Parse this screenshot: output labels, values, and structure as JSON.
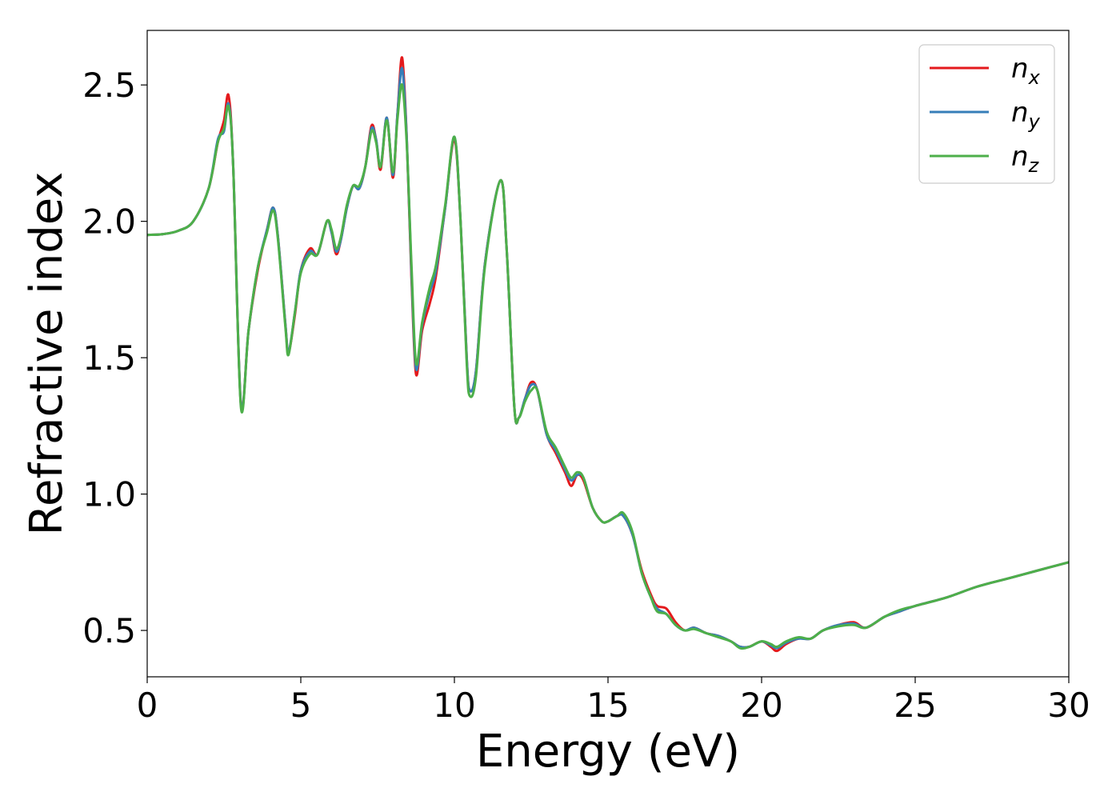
{
  "chart_data": {
    "type": "line",
    "title": "",
    "xlabel": "Energy (eV)",
    "ylabel": "Refractive index",
    "xlim": [
      0,
      30
    ],
    "ylim": [
      0.33,
      2.7
    ],
    "xticks": [
      0,
      5,
      10,
      15,
      20,
      25,
      30
    ],
    "yticks": [
      0.5,
      1.0,
      1.5,
      2.0,
      2.5
    ],
    "xtick_labels": [
      "0",
      "5",
      "10",
      "15",
      "20",
      "25",
      "30"
    ],
    "ytick_labels": [
      "0.5",
      "1.0",
      "1.5",
      "2.0",
      "2.5"
    ],
    "grid": false,
    "legend_position": "top-right",
    "series": [
      {
        "name": "n_x",
        "label_base": "n",
        "label_sub": "x",
        "color": "#e41a1c",
        "points": [
          [
            0,
            1.95
          ],
          [
            0.5,
            1.953
          ],
          [
            1.0,
            1.965
          ],
          [
            1.5,
            2.0
          ],
          [
            2.0,
            2.12
          ],
          [
            2.3,
            2.29
          ],
          [
            2.5,
            2.37
          ],
          [
            2.65,
            2.46
          ],
          [
            2.8,
            2.2
          ],
          [
            3.05,
            1.33
          ],
          [
            3.3,
            1.6
          ],
          [
            3.6,
            1.82
          ],
          [
            3.9,
            1.97
          ],
          [
            4.1,
            2.05
          ],
          [
            4.25,
            1.95
          ],
          [
            4.5,
            1.62
          ],
          [
            4.6,
            1.52
          ],
          [
            4.8,
            1.65
          ],
          [
            5.0,
            1.82
          ],
          [
            5.3,
            1.9
          ],
          [
            5.55,
            1.88
          ],
          [
            5.85,
            2.0
          ],
          [
            6.0,
            1.96
          ],
          [
            6.15,
            1.88
          ],
          [
            6.3,
            1.93
          ],
          [
            6.5,
            2.05
          ],
          [
            6.7,
            2.13
          ],
          [
            6.9,
            2.12
          ],
          [
            7.1,
            2.2
          ],
          [
            7.3,
            2.35
          ],
          [
            7.45,
            2.3
          ],
          [
            7.6,
            2.19
          ],
          [
            7.8,
            2.38
          ],
          [
            8.0,
            2.16
          ],
          [
            8.15,
            2.4
          ],
          [
            8.3,
            2.6
          ],
          [
            8.45,
            2.3
          ],
          [
            8.6,
            1.8
          ],
          [
            8.75,
            1.44
          ],
          [
            8.95,
            1.6
          ],
          [
            9.2,
            1.7
          ],
          [
            9.4,
            1.8
          ],
          [
            9.7,
            2.05
          ],
          [
            10.0,
            2.3
          ],
          [
            10.2,
            2.0
          ],
          [
            10.4,
            1.5
          ],
          [
            10.5,
            1.38
          ],
          [
            10.7,
            1.45
          ],
          [
            11.0,
            1.85
          ],
          [
            11.5,
            2.15
          ],
          [
            11.7,
            1.9
          ],
          [
            11.95,
            1.32
          ],
          [
            12.1,
            1.28
          ],
          [
            12.3,
            1.35
          ],
          [
            12.5,
            1.41
          ],
          [
            12.7,
            1.38
          ],
          [
            13.0,
            1.22
          ],
          [
            13.3,
            1.15
          ],
          [
            13.6,
            1.08
          ],
          [
            13.8,
            1.03
          ],
          [
            14.0,
            1.07
          ],
          [
            14.2,
            1.05
          ],
          [
            14.5,
            0.95
          ],
          [
            14.8,
            0.9
          ],
          [
            15.0,
            0.9
          ],
          [
            15.3,
            0.92
          ],
          [
            15.5,
            0.92
          ],
          [
            15.8,
            0.85
          ],
          [
            16.1,
            0.72
          ],
          [
            16.4,
            0.63
          ],
          [
            16.6,
            0.59
          ],
          [
            16.9,
            0.58
          ],
          [
            17.2,
            0.53
          ],
          [
            17.5,
            0.5
          ],
          [
            17.8,
            0.51
          ],
          [
            18.2,
            0.49
          ],
          [
            18.6,
            0.48
          ],
          [
            19.0,
            0.46
          ],
          [
            19.3,
            0.44
          ],
          [
            19.6,
            0.44
          ],
          [
            20.0,
            0.46
          ],
          [
            20.3,
            0.44
          ],
          [
            20.5,
            0.425
          ],
          [
            20.8,
            0.45
          ],
          [
            21.2,
            0.47
          ],
          [
            21.6,
            0.47
          ],
          [
            22.0,
            0.5
          ],
          [
            22.5,
            0.52
          ],
          [
            23.0,
            0.53
          ],
          [
            23.4,
            0.51
          ],
          [
            24.0,
            0.55
          ],
          [
            24.5,
            0.57
          ],
          [
            25.0,
            0.59
          ],
          [
            26.0,
            0.62
          ],
          [
            27.0,
            0.66
          ],
          [
            28.0,
            0.69
          ],
          [
            29.0,
            0.72
          ],
          [
            30.0,
            0.75
          ]
        ]
      },
      {
        "name": "n_y",
        "label_base": "n",
        "label_sub": "y",
        "color": "#377eb8",
        "points": [
          [
            0,
            1.95
          ],
          [
            0.5,
            1.953
          ],
          [
            1.0,
            1.965
          ],
          [
            1.5,
            2.0
          ],
          [
            2.0,
            2.12
          ],
          [
            2.3,
            2.3
          ],
          [
            2.5,
            2.33
          ],
          [
            2.65,
            2.43
          ],
          [
            2.8,
            2.2
          ],
          [
            3.05,
            1.33
          ],
          [
            3.3,
            1.6
          ],
          [
            3.6,
            1.83
          ],
          [
            3.9,
            1.97
          ],
          [
            4.1,
            2.05
          ],
          [
            4.25,
            1.95
          ],
          [
            4.5,
            1.62
          ],
          [
            4.6,
            1.52
          ],
          [
            4.8,
            1.66
          ],
          [
            5.0,
            1.82
          ],
          [
            5.3,
            1.89
          ],
          [
            5.55,
            1.88
          ],
          [
            5.85,
            2.0
          ],
          [
            6.0,
            1.96
          ],
          [
            6.15,
            1.89
          ],
          [
            6.3,
            1.93
          ],
          [
            6.5,
            2.05
          ],
          [
            6.7,
            2.13
          ],
          [
            6.9,
            2.12
          ],
          [
            7.1,
            2.2
          ],
          [
            7.3,
            2.34
          ],
          [
            7.45,
            2.3
          ],
          [
            7.6,
            2.2
          ],
          [
            7.8,
            2.38
          ],
          [
            8.0,
            2.17
          ],
          [
            8.15,
            2.4
          ],
          [
            8.3,
            2.56
          ],
          [
            8.45,
            2.3
          ],
          [
            8.6,
            1.82
          ],
          [
            8.75,
            1.46
          ],
          [
            8.95,
            1.62
          ],
          [
            9.2,
            1.74
          ],
          [
            9.4,
            1.82
          ],
          [
            9.7,
            2.05
          ],
          [
            10.0,
            2.31
          ],
          [
            10.2,
            2.0
          ],
          [
            10.4,
            1.5
          ],
          [
            10.5,
            1.38
          ],
          [
            10.7,
            1.45
          ],
          [
            11.0,
            1.85
          ],
          [
            11.5,
            2.15
          ],
          [
            11.7,
            1.9
          ],
          [
            11.95,
            1.32
          ],
          [
            12.1,
            1.28
          ],
          [
            12.3,
            1.35
          ],
          [
            12.5,
            1.4
          ],
          [
            12.7,
            1.38
          ],
          [
            13.0,
            1.22
          ],
          [
            13.3,
            1.16
          ],
          [
            13.6,
            1.09
          ],
          [
            13.8,
            1.05
          ],
          [
            14.0,
            1.07
          ],
          [
            14.2,
            1.06
          ],
          [
            14.5,
            0.95
          ],
          [
            14.8,
            0.9
          ],
          [
            15.0,
            0.9
          ],
          [
            15.3,
            0.92
          ],
          [
            15.5,
            0.92
          ],
          [
            15.8,
            0.85
          ],
          [
            16.1,
            0.71
          ],
          [
            16.4,
            0.62
          ],
          [
            16.6,
            0.58
          ],
          [
            16.9,
            0.56
          ],
          [
            17.2,
            0.52
          ],
          [
            17.5,
            0.5
          ],
          [
            17.8,
            0.51
          ],
          [
            18.2,
            0.49
          ],
          [
            18.6,
            0.48
          ],
          [
            19.0,
            0.46
          ],
          [
            19.3,
            0.44
          ],
          [
            19.6,
            0.44
          ],
          [
            20.0,
            0.46
          ],
          [
            20.3,
            0.445
          ],
          [
            20.5,
            0.435
          ],
          [
            20.8,
            0.455
          ],
          [
            21.2,
            0.47
          ],
          [
            21.6,
            0.47
          ],
          [
            22.0,
            0.5
          ],
          [
            22.5,
            0.52
          ],
          [
            23.0,
            0.525
          ],
          [
            23.4,
            0.51
          ],
          [
            24.0,
            0.55
          ],
          [
            24.5,
            0.57
          ],
          [
            25.0,
            0.59
          ],
          [
            26.0,
            0.62
          ],
          [
            27.0,
            0.66
          ],
          [
            28.0,
            0.69
          ],
          [
            29.0,
            0.72
          ],
          [
            30.0,
            0.75
          ]
        ]
      },
      {
        "name": "n_z",
        "label_base": "n",
        "label_sub": "z",
        "color": "#4daf4a",
        "points": [
          [
            0,
            1.95
          ],
          [
            0.5,
            1.953
          ],
          [
            1.0,
            1.965
          ],
          [
            1.5,
            2.0
          ],
          [
            2.0,
            2.12
          ],
          [
            2.3,
            2.29
          ],
          [
            2.5,
            2.34
          ],
          [
            2.65,
            2.42
          ],
          [
            2.8,
            2.2
          ],
          [
            3.05,
            1.32
          ],
          [
            3.3,
            1.6
          ],
          [
            3.6,
            1.83
          ],
          [
            3.9,
            1.96
          ],
          [
            4.1,
            2.04
          ],
          [
            4.25,
            1.94
          ],
          [
            4.5,
            1.61
          ],
          [
            4.6,
            1.51
          ],
          [
            4.8,
            1.66
          ],
          [
            5.0,
            1.81
          ],
          [
            5.3,
            1.88
          ],
          [
            5.55,
            1.88
          ],
          [
            5.85,
            2.0
          ],
          [
            6.0,
            1.97
          ],
          [
            6.15,
            1.9
          ],
          [
            6.3,
            1.94
          ],
          [
            6.5,
            2.06
          ],
          [
            6.7,
            2.13
          ],
          [
            6.9,
            2.13
          ],
          [
            7.1,
            2.2
          ],
          [
            7.3,
            2.33
          ],
          [
            7.45,
            2.29
          ],
          [
            7.6,
            2.2
          ],
          [
            7.8,
            2.37
          ],
          [
            8.0,
            2.18
          ],
          [
            8.15,
            2.38
          ],
          [
            8.3,
            2.5
          ],
          [
            8.45,
            2.28
          ],
          [
            8.6,
            1.85
          ],
          [
            8.75,
            1.48
          ],
          [
            8.95,
            1.63
          ],
          [
            9.2,
            1.76
          ],
          [
            9.4,
            1.84
          ],
          [
            9.7,
            2.06
          ],
          [
            10.0,
            2.31
          ],
          [
            10.2,
            2.0
          ],
          [
            10.4,
            1.48
          ],
          [
            10.5,
            1.36
          ],
          [
            10.7,
            1.43
          ],
          [
            11.0,
            1.84
          ],
          [
            11.5,
            2.15
          ],
          [
            11.7,
            1.9
          ],
          [
            11.95,
            1.32
          ],
          [
            12.1,
            1.28
          ],
          [
            12.3,
            1.34
          ],
          [
            12.5,
            1.38
          ],
          [
            12.7,
            1.38
          ],
          [
            13.0,
            1.23
          ],
          [
            13.3,
            1.17
          ],
          [
            13.6,
            1.1
          ],
          [
            13.8,
            1.06
          ],
          [
            14.0,
            1.08
          ],
          [
            14.2,
            1.06
          ],
          [
            14.5,
            0.95
          ],
          [
            14.8,
            0.9
          ],
          [
            15.0,
            0.9
          ],
          [
            15.3,
            0.92
          ],
          [
            15.5,
            0.93
          ],
          [
            15.8,
            0.86
          ],
          [
            16.1,
            0.71
          ],
          [
            16.4,
            0.62
          ],
          [
            16.6,
            0.57
          ],
          [
            16.9,
            0.56
          ],
          [
            17.2,
            0.52
          ],
          [
            17.5,
            0.5
          ],
          [
            17.8,
            0.505
          ],
          [
            18.2,
            0.49
          ],
          [
            18.6,
            0.475
          ],
          [
            19.0,
            0.46
          ],
          [
            19.3,
            0.435
          ],
          [
            19.6,
            0.44
          ],
          [
            20.0,
            0.46
          ],
          [
            20.3,
            0.45
          ],
          [
            20.5,
            0.44
          ],
          [
            20.8,
            0.46
          ],
          [
            21.2,
            0.475
          ],
          [
            21.6,
            0.47
          ],
          [
            22.0,
            0.5
          ],
          [
            22.5,
            0.515
          ],
          [
            23.0,
            0.52
          ],
          [
            23.4,
            0.51
          ],
          [
            24.0,
            0.55
          ],
          [
            24.5,
            0.575
          ],
          [
            25.0,
            0.59
          ],
          [
            26.0,
            0.62
          ],
          [
            27.0,
            0.66
          ],
          [
            28.0,
            0.69
          ],
          [
            29.0,
            0.72
          ],
          [
            30.0,
            0.75
          ]
        ]
      }
    ]
  }
}
